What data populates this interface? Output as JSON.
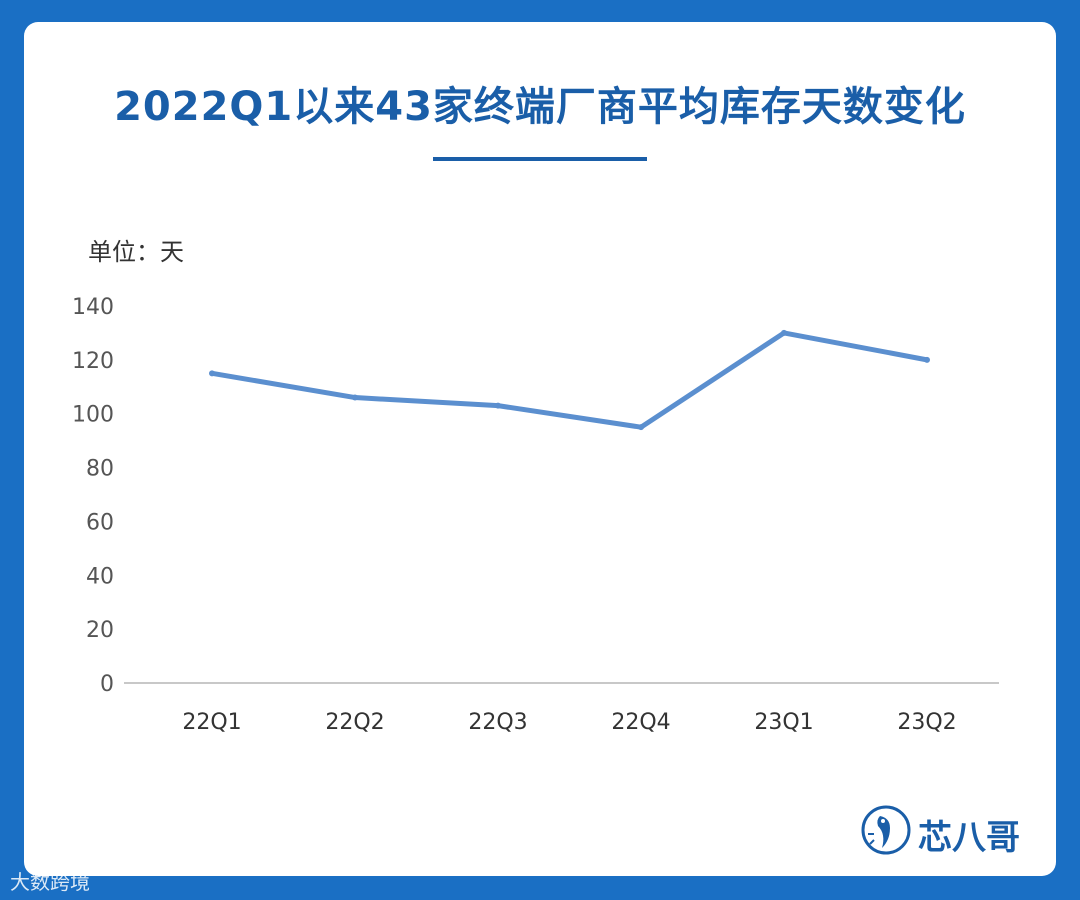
{
  "title": "2022Q1以来43家终端厂商平均库存天数变化",
  "unit_label": "单位：天",
  "brand": {
    "name": "芯八哥"
  },
  "footer": {
    "source": "大数跨境"
  },
  "colors": {
    "background": "#1a6fc4",
    "title": "#1a5ea8",
    "line": "#5b8fcf",
    "axis": "#c8c8c8"
  },
  "chart_data": {
    "type": "line",
    "categories": [
      "22Q1",
      "22Q2",
      "22Q3",
      "22Q4",
      "23Q1",
      "23Q2"
    ],
    "values": [
      115,
      106,
      103,
      95,
      130,
      120
    ],
    "ylim": [
      0,
      140
    ],
    "yticks": [
      0,
      20,
      40,
      60,
      80,
      100,
      120,
      140
    ],
    "grid": false,
    "legend": "none"
  }
}
